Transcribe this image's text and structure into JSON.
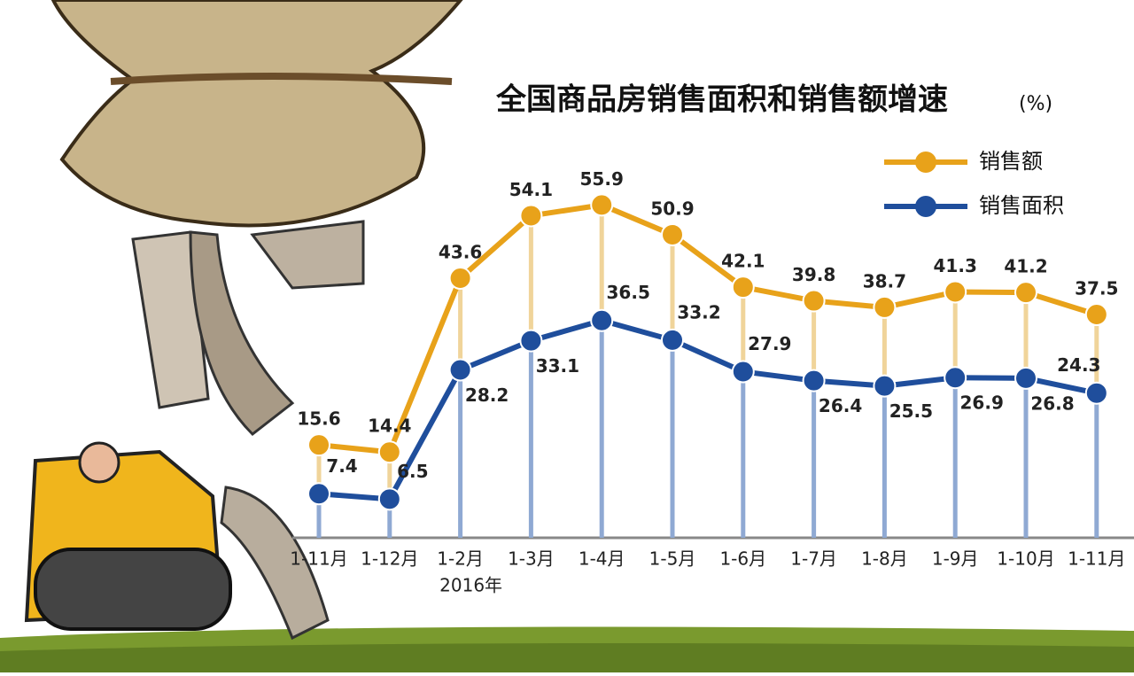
{
  "chart_data": {
    "type": "line",
    "title": "全国商品房销售面积和销售额增速",
    "unit": "(%)",
    "categories": [
      "1-11月",
      "1-12月",
      "1-2月",
      "1-3月",
      "1-4月",
      "1-5月",
      "1-6月",
      "1-7月",
      "1-8月",
      "1-9月",
      "1-10月",
      "1-11月"
    ],
    "annotation": "2016年",
    "series": [
      {
        "name": "销售额",
        "color": "#e8a21a",
        "values": [
          15.6,
          14.4,
          43.6,
          54.1,
          55.9,
          50.9,
          42.1,
          39.8,
          38.7,
          41.3,
          41.2,
          37.5
        ]
      },
      {
        "name": "销售面积",
        "color": "#1f4e9c",
        "values": [
          7.4,
          6.5,
          28.2,
          33.1,
          36.5,
          33.2,
          27.9,
          26.4,
          25.5,
          26.9,
          26.8,
          24.3
        ]
      }
    ]
  }
}
